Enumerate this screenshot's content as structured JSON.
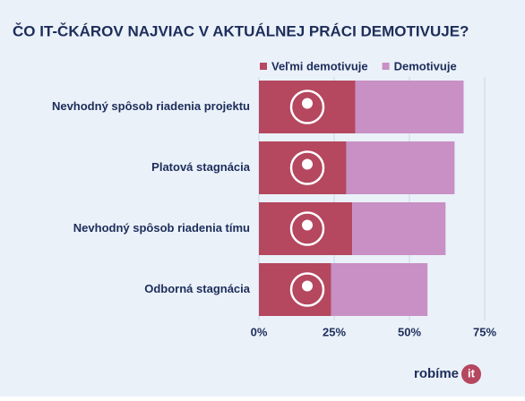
{
  "chart_data": {
    "type": "stacked-bar-horizontal",
    "title": "ČO IT-ČKÁROV NAJVIAC V AKTUÁLNEJ PRÁCI DEMOTIVUJE?",
    "categories": [
      "Nevhodný spôsob riadenia projektu",
      "Platová stagnácia",
      "Nevhodný spôsob riadenia tímu",
      "Odborná stagnácia"
    ],
    "series": [
      {
        "name": "Veľmi demotivuje",
        "color": "#b5475f",
        "values": [
          32,
          29,
          31,
          24
        ]
      },
      {
        "name": "Demotivuje",
        "color": "#c890c4",
        "values": [
          36,
          36,
          31,
          32
        ]
      }
    ],
    "xlim": [
      0,
      75
    ],
    "xticks": [
      {
        "value": 0,
        "label": "0%"
      },
      {
        "value": 25,
        "label": "25%"
      },
      {
        "value": 50,
        "label": "50%"
      },
      {
        "value": 75,
        "label": "75%"
      }
    ],
    "grid": true,
    "legend": "top-right",
    "brand": {
      "text": "robíme",
      "badge": "it"
    }
  }
}
